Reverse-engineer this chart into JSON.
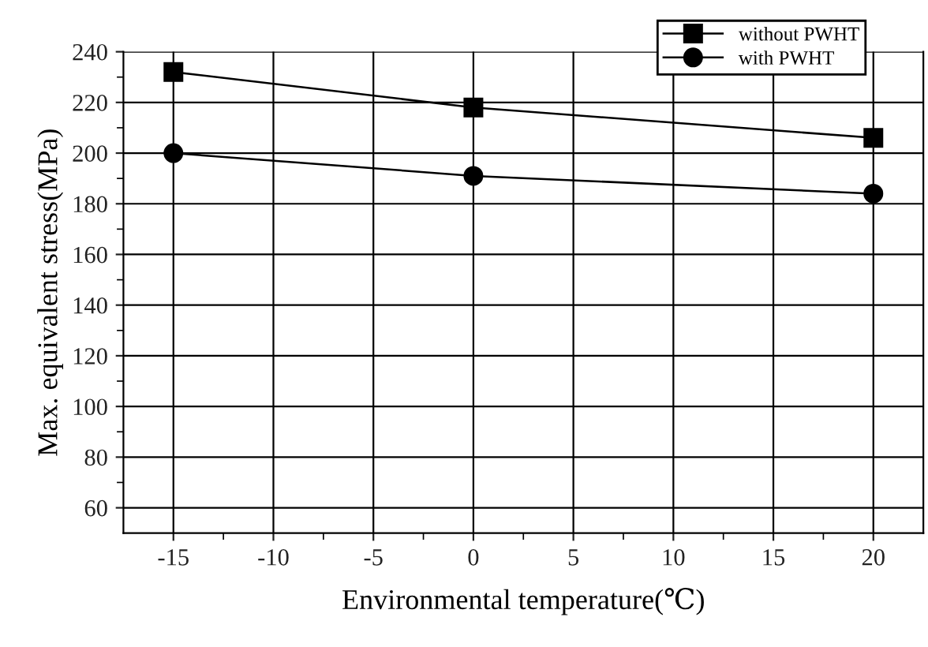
{
  "chart_data": {
    "type": "line",
    "xlabel": "Environmental temperature(℃)",
    "ylabel": "Max. equivalent stress(MPa)",
    "x": [
      -15,
      0,
      20
    ],
    "series": [
      {
        "name": "without PWHT",
        "color": "#000000",
        "marker": "square",
        "values": [
          232,
          218,
          206
        ]
      },
      {
        "name": "with PWHT",
        "color": "#000000",
        "marker": "circle",
        "values": [
          200,
          191,
          184
        ]
      }
    ],
    "xlim": [
      -17.5,
      22.5
    ],
    "xticks": [
      -15,
      -10,
      -5,
      0,
      5,
      10,
      15,
      20
    ],
    "ylim": [
      50,
      240
    ],
    "yticks": [
      60,
      80,
      100,
      120,
      140,
      160,
      180,
      200,
      220,
      240
    ],
    "grid": true,
    "legend": "top right",
    "line_style": "solid"
  }
}
